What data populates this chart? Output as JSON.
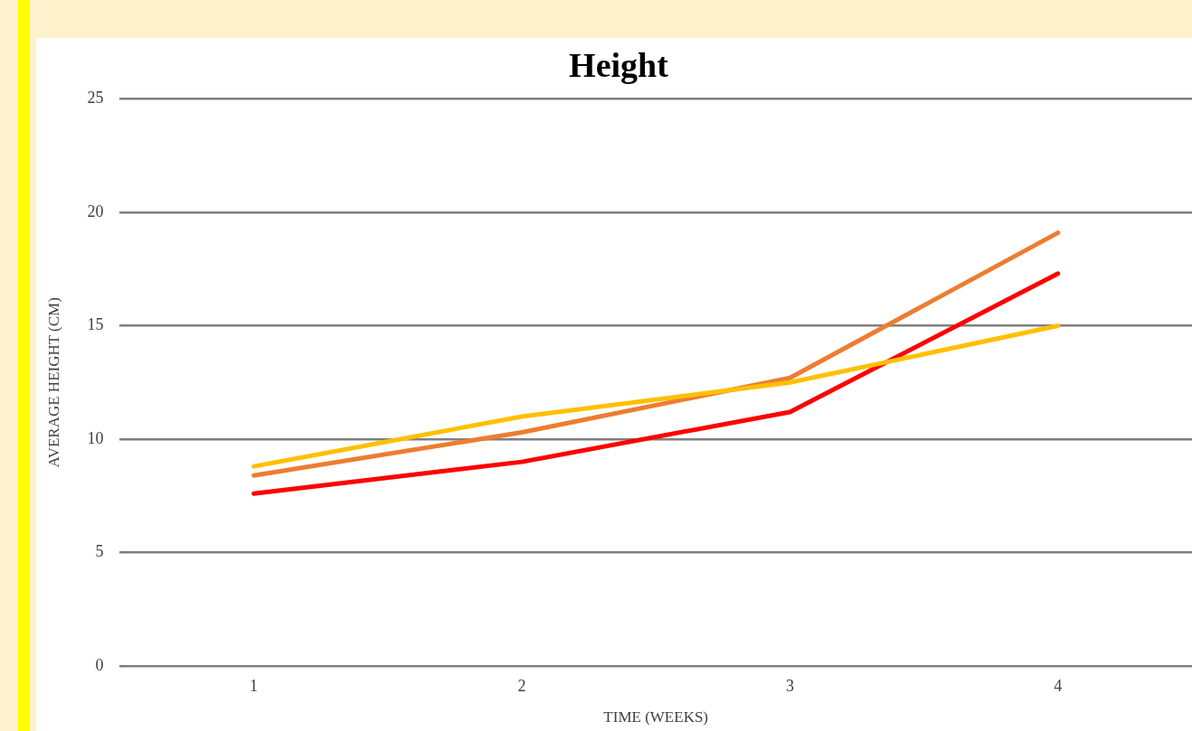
{
  "chart_data": {
    "type": "line",
    "title": "Height",
    "xlabel": "TIME (WEEKS)",
    "ylabel": "AVERAGE HEIGHT (CM)",
    "categories": [
      "1",
      "2",
      "3",
      "4"
    ],
    "series": [
      {
        "color": "#ffc000",
        "values": [
          8.8,
          11.0,
          12.5,
          15.0
        ]
      },
      {
        "color": "#ed7d31",
        "values": [
          8.4,
          10.3,
          12.7,
          19.1
        ]
      },
      {
        "color": "#ff0000",
        "values": [
          7.6,
          9.0,
          11.2,
          17.3
        ]
      }
    ],
    "ylim": [
      0,
      25
    ],
    "yticks": [
      0,
      5,
      10,
      15,
      20,
      25
    ],
    "grid": "y",
    "legend": false,
    "marker": "none",
    "line_style": "solid"
  }
}
